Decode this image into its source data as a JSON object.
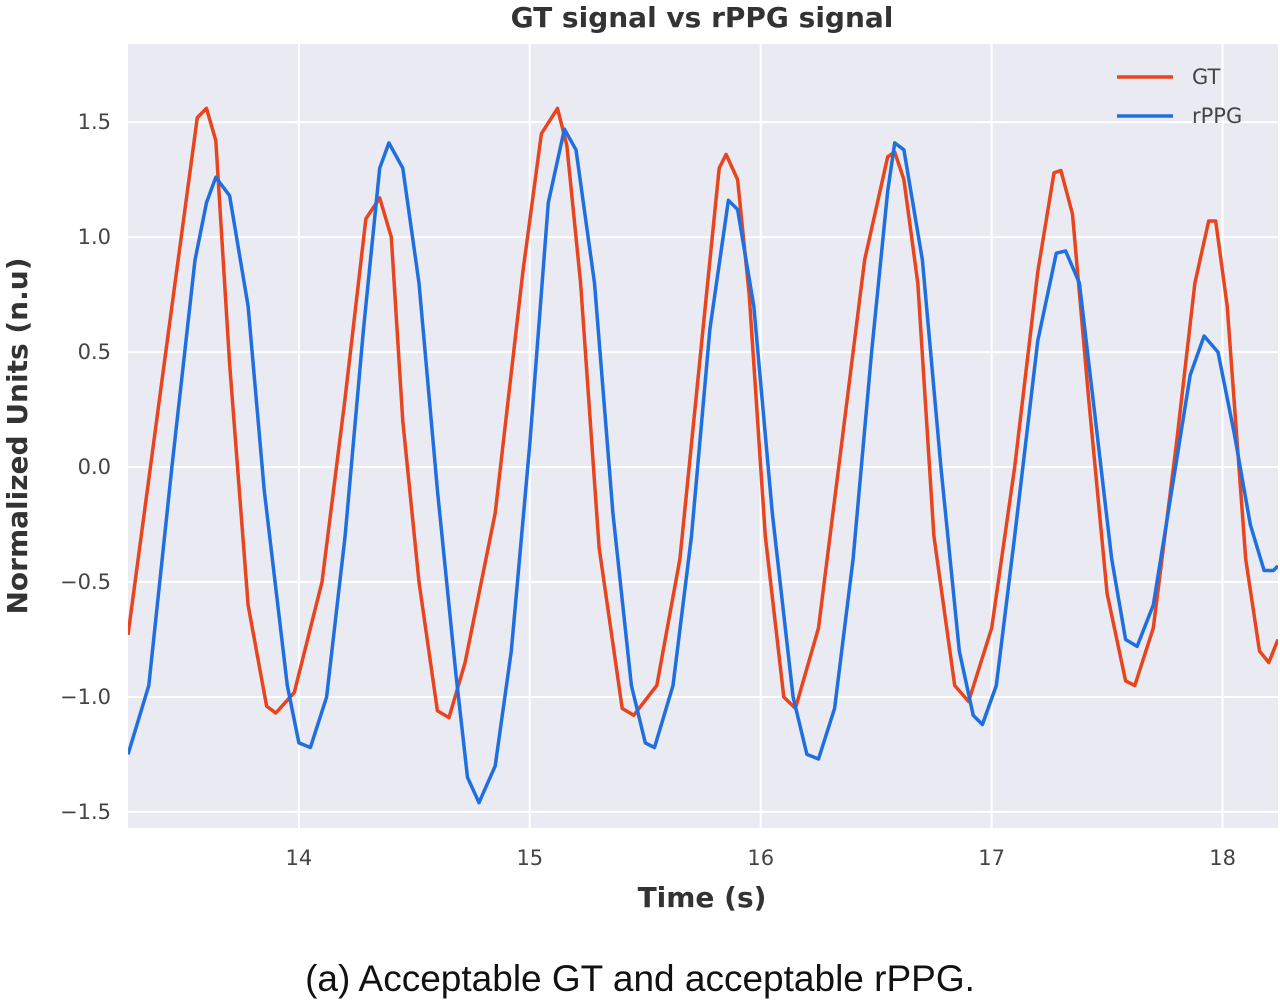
{
  "caption": "(a) Acceptable GT and acceptable rPPG.",
  "chart_data": {
    "type": "line",
    "title": "GT signal vs rPPG signal",
    "xlabel": "Time (s)",
    "ylabel": "Normalized Units (n.u)",
    "xlim": [
      13.26,
      18.24
    ],
    "ylim": [
      -1.57,
      1.84
    ],
    "xticks": [
      14,
      15,
      16,
      17,
      18
    ],
    "yticks": [
      -1.5,
      -1.0,
      -0.5,
      0.0,
      0.5,
      1.0,
      1.5
    ],
    "ytick_labels": [
      "−1.5",
      "−1.0",
      "−0.5",
      "0.0",
      "0.5",
      "1.0",
      "1.5"
    ],
    "grid": true,
    "background": "#eaeaf2",
    "legend_position": "top-right",
    "series": [
      {
        "name": "GT",
        "color": "#e8451e",
        "points": [
          [
            13.26,
            -0.73
          ],
          [
            13.43,
            0.55
          ],
          [
            13.56,
            1.52
          ],
          [
            13.6,
            1.56
          ],
          [
            13.64,
            1.42
          ],
          [
            13.7,
            0.45
          ],
          [
            13.78,
            -0.6
          ],
          [
            13.86,
            -1.04
          ],
          [
            13.9,
            -1.07
          ],
          [
            13.98,
            -0.98
          ],
          [
            14.1,
            -0.5
          ],
          [
            14.2,
            0.3
          ],
          [
            14.29,
            1.08
          ],
          [
            14.35,
            1.17
          ],
          [
            14.4,
            1.0
          ],
          [
            14.45,
            0.2
          ],
          [
            14.52,
            -0.5
          ],
          [
            14.6,
            -1.06
          ],
          [
            14.65,
            -1.09
          ],
          [
            14.72,
            -0.85
          ],
          [
            14.85,
            -0.2
          ],
          [
            14.97,
            0.85
          ],
          [
            15.05,
            1.45
          ],
          [
            15.12,
            1.56
          ],
          [
            15.16,
            1.4
          ],
          [
            15.22,
            0.8
          ],
          [
            15.3,
            -0.35
          ],
          [
            15.4,
            -1.05
          ],
          [
            15.45,
            -1.08
          ],
          [
            15.55,
            -0.95
          ],
          [
            15.65,
            -0.4
          ],
          [
            15.75,
            0.6
          ],
          [
            15.82,
            1.3
          ],
          [
            15.85,
            1.36
          ],
          [
            15.9,
            1.25
          ],
          [
            15.95,
            0.75
          ],
          [
            16.02,
            -0.3
          ],
          [
            16.1,
            -1.0
          ],
          [
            16.15,
            -1.05
          ],
          [
            16.25,
            -0.7
          ],
          [
            16.35,
            0.1
          ],
          [
            16.45,
            0.9
          ],
          [
            16.55,
            1.35
          ],
          [
            16.58,
            1.37
          ],
          [
            16.62,
            1.25
          ],
          [
            16.68,
            0.8
          ],
          [
            16.75,
            -0.3
          ],
          [
            16.84,
            -0.95
          ],
          [
            16.9,
            -1.02
          ],
          [
            17.0,
            -0.7
          ],
          [
            17.1,
            0.0
          ],
          [
            17.2,
            0.85
          ],
          [
            17.27,
            1.28
          ],
          [
            17.3,
            1.29
          ],
          [
            17.35,
            1.1
          ],
          [
            17.42,
            0.3
          ],
          [
            17.5,
            -0.55
          ],
          [
            17.58,
            -0.93
          ],
          [
            17.62,
            -0.95
          ],
          [
            17.7,
            -0.7
          ],
          [
            17.8,
            0.1
          ],
          [
            17.88,
            0.8
          ],
          [
            17.94,
            1.07
          ],
          [
            17.97,
            1.07
          ],
          [
            18.02,
            0.7
          ],
          [
            18.1,
            -0.4
          ],
          [
            18.16,
            -0.8
          ],
          [
            18.2,
            -0.85
          ],
          [
            18.24,
            -0.75
          ]
        ]
      },
      {
        "name": "rPPG",
        "color": "#1f6fe0",
        "points": [
          [
            13.26,
            -1.25
          ],
          [
            13.35,
            -0.95
          ],
          [
            13.45,
            0.0
          ],
          [
            13.55,
            0.9
          ],
          [
            13.6,
            1.15
          ],
          [
            13.64,
            1.26
          ],
          [
            13.7,
            1.18
          ],
          [
            13.78,
            0.7
          ],
          [
            13.85,
            -0.1
          ],
          [
            13.95,
            -0.95
          ],
          [
            14.0,
            -1.2
          ],
          [
            14.05,
            -1.22
          ],
          [
            14.12,
            -1.0
          ],
          [
            14.2,
            -0.3
          ],
          [
            14.28,
            0.6
          ],
          [
            14.35,
            1.3
          ],
          [
            14.39,
            1.41
          ],
          [
            14.45,
            1.3
          ],
          [
            14.52,
            0.8
          ],
          [
            14.6,
            -0.1
          ],
          [
            14.68,
            -0.9
          ],
          [
            14.73,
            -1.35
          ],
          [
            14.78,
            -1.46
          ],
          [
            14.85,
            -1.3
          ],
          [
            14.92,
            -0.8
          ],
          [
            15.0,
            0.1
          ],
          [
            15.08,
            1.15
          ],
          [
            15.15,
            1.47
          ],
          [
            15.2,
            1.38
          ],
          [
            15.28,
            0.8
          ],
          [
            15.36,
            -0.2
          ],
          [
            15.44,
            -0.95
          ],
          [
            15.5,
            -1.2
          ],
          [
            15.54,
            -1.22
          ],
          [
            15.62,
            -0.95
          ],
          [
            15.7,
            -0.3
          ],
          [
            15.78,
            0.6
          ],
          [
            15.86,
            1.16
          ],
          [
            15.9,
            1.12
          ],
          [
            15.97,
            0.7
          ],
          [
            16.05,
            -0.2
          ],
          [
            16.14,
            -1.0
          ],
          [
            16.2,
            -1.25
          ],
          [
            16.25,
            -1.27
          ],
          [
            16.32,
            -1.05
          ],
          [
            16.4,
            -0.4
          ],
          [
            16.48,
            0.5
          ],
          [
            16.55,
            1.2
          ],
          [
            16.58,
            1.41
          ],
          [
            16.62,
            1.38
          ],
          [
            16.7,
            0.9
          ],
          [
            16.78,
            0.0
          ],
          [
            16.86,
            -0.8
          ],
          [
            16.92,
            -1.08
          ],
          [
            16.96,
            -1.12
          ],
          [
            17.02,
            -0.95
          ],
          [
            17.1,
            -0.3
          ],
          [
            17.2,
            0.55
          ],
          [
            17.28,
            0.93
          ],
          [
            17.32,
            0.94
          ],
          [
            17.38,
            0.8
          ],
          [
            17.45,
            0.2
          ],
          [
            17.52,
            -0.4
          ],
          [
            17.58,
            -0.75
          ],
          [
            17.63,
            -0.78
          ],
          [
            17.7,
            -0.6
          ],
          [
            17.78,
            -0.1
          ],
          [
            17.86,
            0.4
          ],
          [
            17.92,
            0.57
          ],
          [
            17.98,
            0.5
          ],
          [
            18.05,
            0.15
          ],
          [
            18.12,
            -0.25
          ],
          [
            18.18,
            -0.45
          ],
          [
            18.22,
            -0.45
          ],
          [
            18.24,
            -0.43
          ]
        ]
      }
    ]
  }
}
